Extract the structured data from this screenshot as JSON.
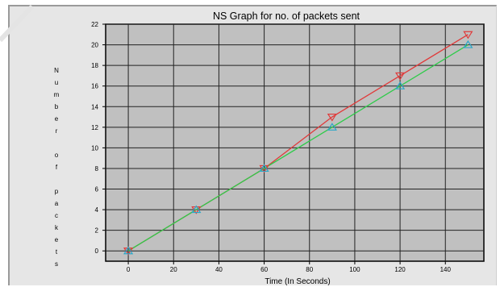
{
  "chart_data": {
    "type": "line",
    "title": "NS Graph for no. of packets sent",
    "xlabel": "Time (In Seconds)",
    "ylabel": "N u m b e r   o f   p a c k e t s",
    "x_ticks": [
      "0",
      "20",
      "40",
      "60",
      "80",
      "100",
      "120",
      "140"
    ],
    "y_ticks": [
      "0",
      "2",
      "4",
      "6",
      "8",
      "10",
      "12",
      "14",
      "16",
      "18",
      "20",
      "22"
    ],
    "xlim": [
      -10,
      157
    ],
    "ylim": [
      -1,
      22
    ],
    "grid": true,
    "legend": "none",
    "series": [
      {
        "marker": "triangle-down",
        "color": "#e03a3a",
        "x": [
          0,
          30,
          60,
          90,
          120,
          150
        ],
        "y": [
          0,
          4,
          8,
          13,
          17,
          21
        ]
      },
      {
        "marker": "triangle-up",
        "color": "#2ecb4a",
        "marker_color": "#2aa6c8",
        "x": [
          0,
          30,
          60,
          90,
          120,
          150
        ],
        "y": [
          0,
          4,
          8,
          12,
          16,
          20
        ]
      }
    ]
  }
}
